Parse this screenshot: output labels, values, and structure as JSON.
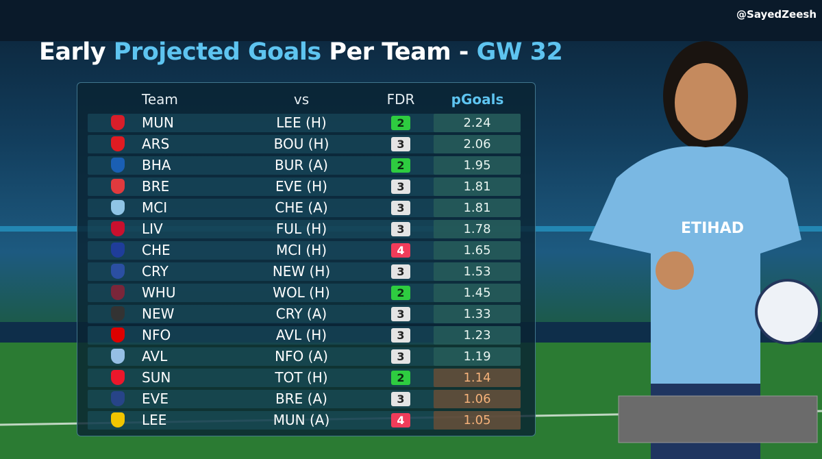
{
  "handle": "@SayedZeesh",
  "title": {
    "parts": [
      {
        "text": "Early ",
        "accent": false
      },
      {
        "text": "Projected Goals",
        "accent": true
      },
      {
        "text": " Per Team - ",
        "accent": false
      },
      {
        "text": "GW 32",
        "accent": true
      }
    ]
  },
  "table": {
    "columns": [
      "Team",
      "vs",
      "FDR",
      "pGoals"
    ],
    "rows": [
      [
        "MUN",
        "LEE (H)",
        2,
        2.24
      ],
      [
        "ARS",
        "BOU (H)",
        3,
        2.06
      ],
      [
        "BHA",
        "BUR (A)",
        2,
        1.95
      ],
      [
        "BRE",
        "EVE (H)",
        3,
        1.81
      ],
      [
        "MCI",
        "CHE (A)",
        3,
        1.81
      ],
      [
        "LIV",
        "FUL (H)",
        3,
        1.78
      ],
      [
        "CHE",
        "MCI (H)",
        4,
        1.65
      ],
      [
        "CRY",
        "NEW (H)",
        3,
        1.53
      ],
      [
        "WHU",
        "WOL (H)",
        2,
        1.45
      ],
      [
        "NEW",
        "CRY (A)",
        3,
        1.33
      ],
      [
        "NFO",
        "AVL (H)",
        3,
        1.23
      ],
      [
        "AVL",
        "NFO (A)",
        3,
        1.19
      ],
      [
        "SUN",
        "TOT (H)",
        2,
        1.14
      ],
      [
        "EVE",
        "BRE (A)",
        3,
        1.06
      ],
      [
        "LEE",
        "MUN (A)",
        4,
        1.05
      ]
    ]
  }
}
